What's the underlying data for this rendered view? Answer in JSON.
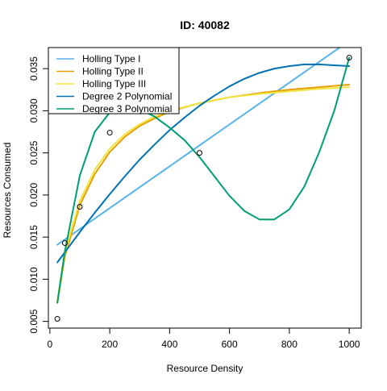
{
  "chart_data": {
    "type": "scatter",
    "title": "ID: 40082",
    "xlabel": "Resource Density",
    "ylabel": "Resources Consumed",
    "xlim": [
      -5,
      1040
    ],
    "ylim": [
      0.0042,
      0.0375
    ],
    "x_ticks": [
      0,
      200,
      400,
      600,
      800,
      1000
    ],
    "x_tick_labels": [
      "0",
      "200",
      "400",
      "600",
      "800",
      "1000"
    ],
    "y_ticks": [
      0.005,
      0.01,
      0.015,
      0.02,
      0.025,
      0.03,
      0.035
    ],
    "y_tick_labels": [
      "0.005",
      "0.010",
      "0.015",
      "0.020",
      "0.025",
      "0.030",
      "0.035"
    ],
    "grid": false,
    "legend_position": "top-left",
    "points": {
      "x": [
        25,
        50,
        100,
        200,
        500,
        1000
      ],
      "y": [
        0.0053,
        0.0143,
        0.0186,
        0.0274,
        0.025,
        0.0363
      ]
    },
    "series": [
      {
        "name": "Holling Type I",
        "color": "#56B4E9",
        "x": [
          25,
          1000
        ],
        "y": [
          0.0141,
          0.0383
        ]
      },
      {
        "name": "Holling Type II",
        "color": "#E69F00",
        "x": [
          25,
          50,
          100,
          150,
          200,
          250,
          300,
          350,
          400,
          500,
          600,
          700,
          800,
          900,
          1000
        ],
        "y": [
          0.0072,
          0.0127,
          0.0188,
          0.0225,
          0.0251,
          0.0269,
          0.0282,
          0.0291,
          0.0299,
          0.0309,
          0.0316,
          0.0321,
          0.0325,
          0.0328,
          0.0331
        ]
      },
      {
        "name": "Holling Type III",
        "color": "#F0E442",
        "x": [
          25,
          50,
          100,
          150,
          200,
          250,
          300,
          350,
          400,
          500,
          600,
          700,
          800,
          900,
          1000
        ],
        "y": [
          0.0075,
          0.0132,
          0.0193,
          0.023,
          0.0255,
          0.0272,
          0.0284,
          0.0293,
          0.03,
          0.0309,
          0.0316,
          0.032,
          0.0323,
          0.0326,
          0.0328
        ]
      },
      {
        "name": "Degree 2 Polynomial",
        "color": "#0072B2",
        "x": [
          25,
          50,
          100,
          150,
          200,
          250,
          300,
          350,
          400,
          450,
          500,
          550,
          600,
          650,
          700,
          750,
          800,
          850,
          900,
          950,
          1000
        ],
        "y": [
          0.012,
          0.0132,
          0.0156,
          0.0179,
          0.0201,
          0.0222,
          0.0242,
          0.026,
          0.0277,
          0.0292,
          0.0306,
          0.0318,
          0.0329,
          0.0338,
          0.0345,
          0.035,
          0.0353,
          0.0355,
          0.0355,
          0.0354,
          0.0353
        ]
      },
      {
        "name": "Degree 3 Polynomial",
        "color": "#009E73",
        "x": [
          25,
          50,
          100,
          150,
          200,
          250,
          300,
          350,
          400,
          450,
          500,
          550,
          600,
          650,
          700,
          750,
          800,
          850,
          900,
          950,
          1000
        ],
        "y": [
          0.0072,
          0.0133,
          0.0223,
          0.0275,
          0.0298,
          0.0305,
          0.0302,
          0.0293,
          0.028,
          0.0265,
          0.0245,
          0.0222,
          0.0199,
          0.0181,
          0.0171,
          0.0171,
          0.0183,
          0.021,
          0.0251,
          0.03,
          0.0363
        ]
      }
    ]
  }
}
